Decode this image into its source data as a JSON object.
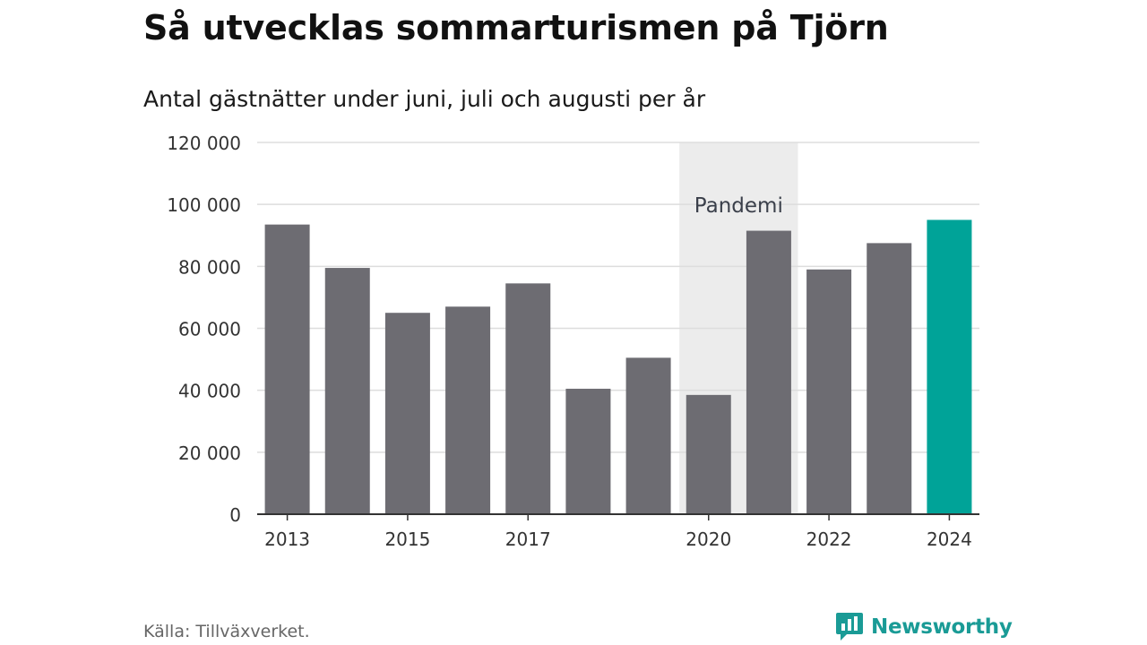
{
  "title": "Så utvecklas sommarturismen på Tjörn",
  "subtitle": "Antal gästnätter under juni, juli och augusti per år",
  "source": "Källa: Tillväxverket.",
  "brand": {
    "name": "Newsworthy",
    "icon": "newsworthy-logo-icon",
    "color": "#1a9b96"
  },
  "colors": {
    "bar": "#6d6c72",
    "highlight": "#00a398",
    "pandemic_band": "#ececec",
    "grid": "#dddddd",
    "axis": "#333333"
  },
  "chart_data": {
    "type": "bar",
    "title": "Så utvecklas sommarturismen på Tjörn",
    "subtitle": "Antal gästnätter under juni, juli och augusti per år",
    "xlabel": "",
    "ylabel": "",
    "categories": [
      "2013",
      "2014",
      "2015",
      "2016",
      "2017",
      "2018",
      "2019",
      "2020",
      "2021",
      "2022",
      "2023",
      "2024"
    ],
    "values": [
      93500,
      79500,
      65000,
      67000,
      74500,
      40500,
      50500,
      38500,
      91500,
      79000,
      87500,
      95000
    ],
    "x_tick_labels": [
      "2013",
      "2015",
      "2017",
      "2020",
      "2022",
      "2024"
    ],
    "highlight_category": "2024",
    "ylim": [
      0,
      120000
    ],
    "y_ticks": [
      0,
      20000,
      40000,
      60000,
      80000,
      100000,
      120000
    ],
    "y_tick_labels": [
      "0",
      "20 000",
      "40 000",
      "60 000",
      "80 000",
      "100 000",
      "120 000"
    ],
    "grid": true,
    "annotations": [
      {
        "label": "Pandemi",
        "from": "2020",
        "to": "2021"
      }
    ]
  }
}
